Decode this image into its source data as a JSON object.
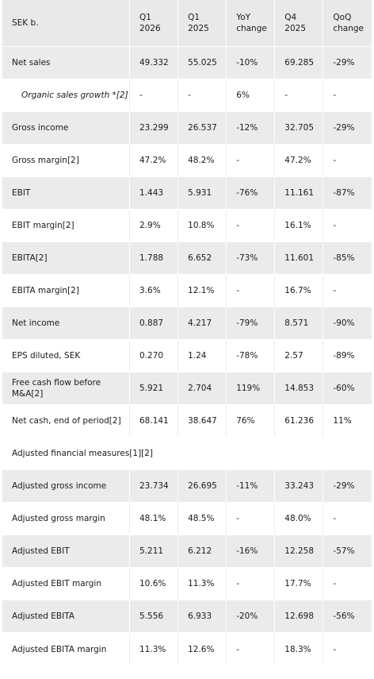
{
  "header": {
    "col0": "SEK b.",
    "col1": [
      "Q1",
      "2026"
    ],
    "col2": [
      "Q1",
      "2025"
    ],
    "col3": [
      "YoY",
      "change"
    ],
    "col4": [
      "Q4",
      "2025"
    ],
    "col5": [
      "QoQ",
      "change"
    ]
  },
  "rows": [
    {
      "label": "Net sales",
      "v": [
        "49.332",
        "55.025",
        "-10%",
        "69.285",
        "-29%"
      ]
    },
    {
      "label": "Organic sales growth *[2]",
      "v": [
        "-",
        "-",
        "6%",
        "-",
        "-"
      ]
    },
    {
      "label": "Gross income",
      "v": [
        "23.299",
        "26.537",
        "-12%",
        "32.705",
        "-29%"
      ]
    },
    {
      "label": "Gross margin[2]",
      "v": [
        "47.2%",
        "48.2%",
        "-",
        "47.2%",
        "-"
      ]
    },
    {
      "label": "EBIT",
      "v": [
        "1.443",
        "5.931",
        "-76%",
        "11.161",
        "-87%"
      ]
    },
    {
      "label": "EBIT margin[2]",
      "v": [
        "2.9%",
        "10.8%",
        "-",
        "16.1%",
        "-"
      ]
    },
    {
      "label": "EBITA[2]",
      "v": [
        "1.788",
        "6.652",
        "-73%",
        "11.601",
        "-85%"
      ]
    },
    {
      "label": "EBITA margin[2]",
      "v": [
        "3.6%",
        "12.1%",
        "-",
        "16.7%",
        "-"
      ]
    },
    {
      "label": "Net income",
      "v": [
        "0.887",
        "4.217",
        "-79%",
        "8.571",
        "-90%"
      ]
    },
    {
      "label": "EPS diluted, SEK",
      "v": [
        "0.270",
        "1.24",
        "-78%",
        "2.57",
        "-89%"
      ]
    },
    {
      "label": "Free cash flow before M&A[2]",
      "v": [
        "5.921",
        "2.704",
        "119%",
        "14.853",
        "-60%"
      ]
    },
    {
      "label": "Net cash, end of period[2]",
      "v": [
        "68.141",
        "38.647",
        "76%",
        "61.236",
        "11%"
      ]
    },
    {
      "label": "Adjusted financial measures[1][2]"
    },
    {
      "label": "Adjusted gross income",
      "v": [
        "23.734",
        "26.695",
        "-11%",
        "33.243",
        "-29%"
      ]
    },
    {
      "label": "Adjusted gross margin",
      "v": [
        "48.1%",
        "48.5%",
        "-",
        "48.0%",
        "-"
      ]
    },
    {
      "label": "Adjusted EBIT",
      "v": [
        "5.211",
        "6.212",
        "-16%",
        "12.258",
        "-57%"
      ]
    },
    {
      "label": "Adjusted EBIT margin",
      "v": [
        "10.6%",
        "11.3%",
        "-",
        "17.7%",
        "-"
      ]
    },
    {
      "label": "Adjusted EBITA",
      "v": [
        "5.556",
        "6.933",
        "-20%",
        "12.698",
        "-56%"
      ]
    },
    {
      "label": "Adjusted EBITA margin",
      "v": [
        "11.3%",
        "12.6%",
        "-",
        "18.3%",
        "-"
      ]
    }
  ]
}
